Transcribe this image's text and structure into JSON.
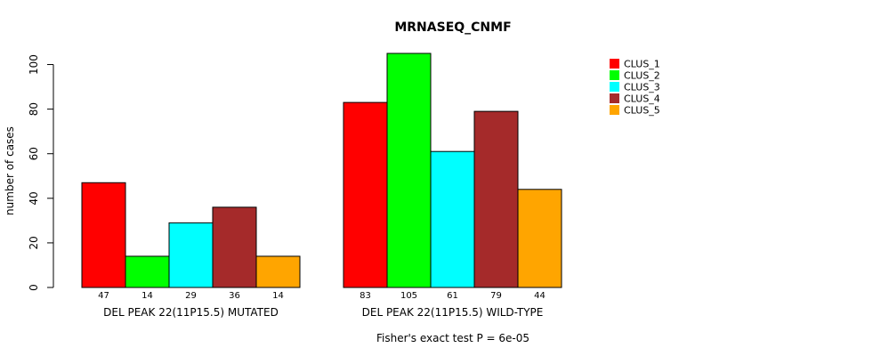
{
  "chart_data": {
    "type": "bar",
    "title": "MRNASEQ_CNMF",
    "ylabel": "number of cases",
    "xlabel": "",
    "ylim": [
      0,
      105
    ],
    "yticks": [
      0,
      20,
      40,
      60,
      80,
      100
    ],
    "groups": [
      "DEL PEAK 22(11P15.5) MUTATED",
      "DEL PEAK 22(11P15.5) WILD-TYPE"
    ],
    "series": [
      {
        "name": "CLUS_1",
        "color": "#ff0000",
        "values": [
          47,
          83
        ]
      },
      {
        "name": "CLUS_2",
        "color": "#00ff00",
        "values": [
          14,
          105
        ]
      },
      {
        "name": "CLUS_3",
        "color": "#00ffff",
        "values": [
          29,
          61
        ]
      },
      {
        "name": "CLUS_4",
        "color": "#a52a2a",
        "values": [
          36,
          79
        ]
      },
      {
        "name": "CLUS_5",
        "color": "#ffa500",
        "values": [
          14,
          44
        ]
      }
    ],
    "footnote": "Fisher's exact test P = 6e-05",
    "legend_position": "top-right"
  }
}
